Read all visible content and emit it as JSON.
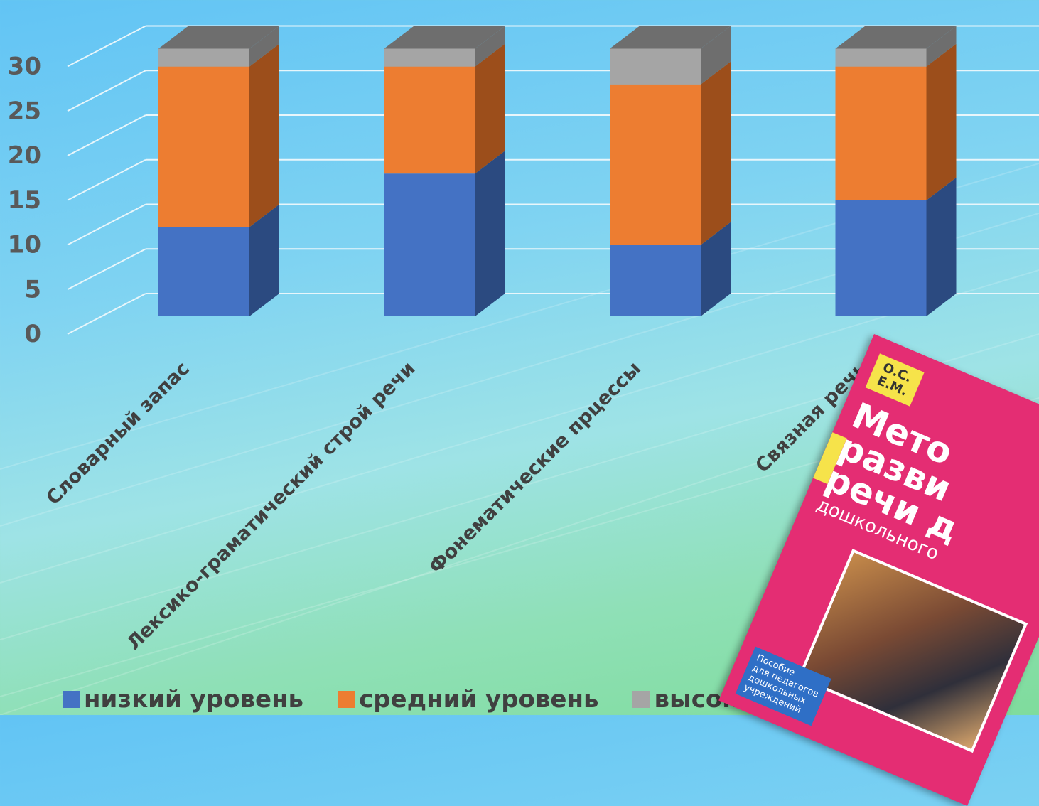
{
  "chart_data": {
    "type": "bar",
    "stacked": true,
    "three_d": true,
    "categories": [
      "Словарный запас",
      "Лексико-граматический  строй речи",
      "Фонематические прцессы",
      "Связная речь"
    ],
    "series": [
      {
        "name": "низкий уровень",
        "color": "#4472c4",
        "side_color": "#2b4a80",
        "values": [
          10,
          16,
          8,
          13
        ]
      },
      {
        "name": "средний уровень",
        "color": "#ed7d31",
        "side_color": "#9c4e1b",
        "values": [
          18,
          12,
          18,
          15
        ]
      },
      {
        "name": "высокий уровень",
        "color": "#a5a5a5",
        "side_color": "#6e6e6e",
        "values": [
          2,
          2,
          4,
          2
        ]
      }
    ],
    "yticks": [
      "0",
      "5",
      "10",
      "15",
      "20",
      "25",
      "30"
    ],
    "ylim": [
      0,
      30
    ],
    "grid": true,
    "legend": "bottom"
  },
  "book": {
    "authors": "О.С.\nЕ.М.",
    "title": "Мето\nразви\nречи д",
    "subtitle": "дошкольного",
    "note": "Пособие\nдля педагогов\nдошкольных\nучреждений"
  }
}
